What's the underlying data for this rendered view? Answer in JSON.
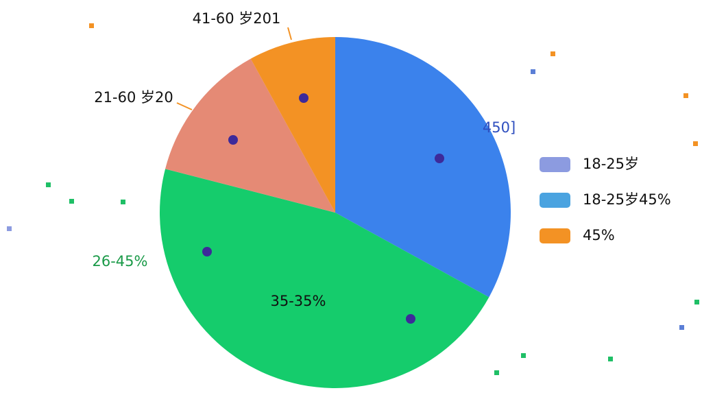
{
  "chart_data": {
    "type": "pie",
    "values": [
      33,
      46,
      13,
      8
    ],
    "colors": [
      "#3b82ec",
      "#15cc6c",
      "#e58a75",
      "#f39224"
    ],
    "slice_labels": [
      "450]",
      "26-45%",
      "21-60 岁20",
      "41-60 岁201"
    ],
    "annotation": "35-35%",
    "legend_position": "right",
    "legend": [
      {
        "name": "18-25岁",
        "color": "#8c9be0"
      },
      {
        "name": "18-25岁45%",
        "color": "#4aa3e0"
      },
      {
        "name": "45%",
        "color": "#f39224"
      }
    ]
  }
}
